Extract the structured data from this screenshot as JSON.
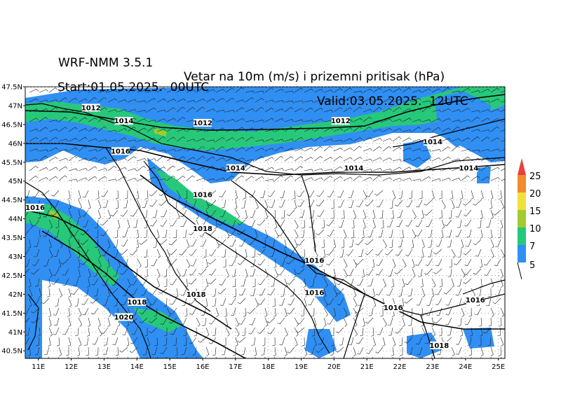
{
  "header": {
    "model": "WRF-NMM 3.5.1",
    "description": "Vetar na 10m (m/s) i prizemni pritisak (hPa)",
    "start": "Start:01.05.2025.  00UTC",
    "valid": "Valid:03.05.2025.  12UTC"
  },
  "map": {
    "lat_ticks": [
      "47.5N",
      "47N",
      "46.5N",
      "46N",
      "45.5N",
      "45N",
      "44.5N",
      "44N",
      "43.5N",
      "43N",
      "42.5N",
      "42N",
      "41.5N",
      "41N",
      "40.5N"
    ],
    "lon_ticks": [
      "11E",
      "12E",
      "13E",
      "14E",
      "15E",
      "16E",
      "17E",
      "18E",
      "19E",
      "20E",
      "21E",
      "22E",
      "23E",
      "24E",
      "25E"
    ],
    "isobar_labels": [
      {
        "text": "1012",
        "lon": 12.6,
        "lat": 46.9
      },
      {
        "text": "1014",
        "lon": 13.6,
        "lat": 46.55
      },
      {
        "text": "1012",
        "lon": 16.0,
        "lat": 46.5
      },
      {
        "text": "1012",
        "lon": 20.2,
        "lat": 46.55
      },
      {
        "text": "1016",
        "lon": 13.5,
        "lat": 45.75
      },
      {
        "text": "1014",
        "lon": 17.0,
        "lat": 45.3
      },
      {
        "text": "1014",
        "lon": 20.6,
        "lat": 45.3
      },
      {
        "text": "1014",
        "lon": 23.0,
        "lat": 46.0
      },
      {
        "text": "1014",
        "lon": 24.1,
        "lat": 45.3
      },
      {
        "text": "1016",
        "lon": 10.9,
        "lat": 44.25
      },
      {
        "text": "1016",
        "lon": 16.0,
        "lat": 44.6
      },
      {
        "text": "1018",
        "lon": 16.0,
        "lat": 43.7
      },
      {
        "text": "1016",
        "lon": 19.4,
        "lat": 42.85
      },
      {
        "text": "1018",
        "lon": 15.8,
        "lat": 41.95
      },
      {
        "text": "1016",
        "lon": 19.4,
        "lat": 42.0
      },
      {
        "text": "1018",
        "lon": 14.0,
        "lat": 41.75
      },
      {
        "text": "1020",
        "lon": 13.6,
        "lat": 41.35
      },
      {
        "text": "1016",
        "lon": 21.8,
        "lat": 41.6
      },
      {
        "text": "1016",
        "lon": 24.3,
        "lat": 41.8
      },
      {
        "text": "1018",
        "lon": 23.2,
        "lat": 40.6
      }
    ]
  },
  "colorbar": {
    "labels": [
      "25",
      "20",
      "15",
      "10",
      "7",
      "5"
    ],
    "colors": {
      "c5": "#2f8ff4",
      "c7": "#26c97a",
      "c10": "#a2cc2e",
      "c15": "#f0e03a",
      "c20": "#f28c2c",
      "c25": "#e8413a"
    }
  }
}
